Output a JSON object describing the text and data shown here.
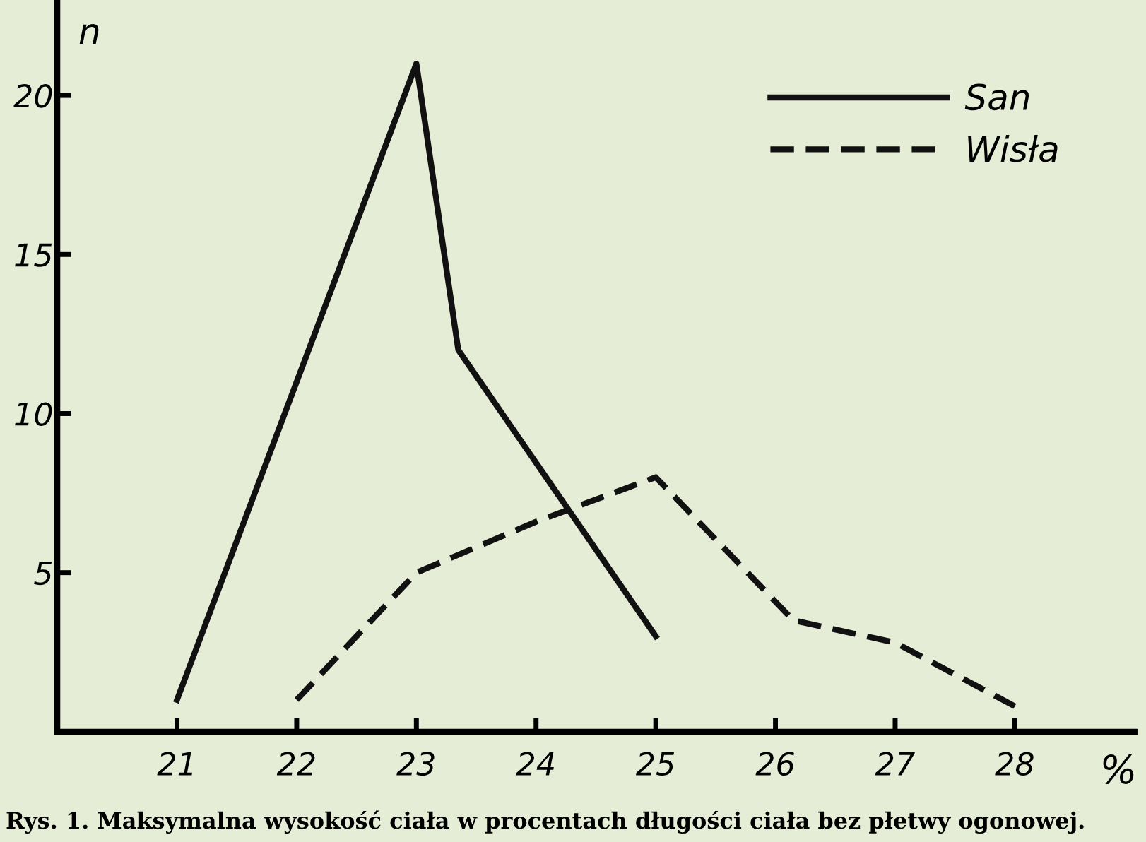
{
  "chart_data": {
    "type": "line",
    "xlabel": "%",
    "ylabel": "n",
    "annotations": [
      "Rys. 1. Maksymalna wysokość ciała w procentach długości ciała bez płetwy ogonowej."
    ],
    "series": [
      {
        "name": "San",
        "color": "#111111",
        "line_style": "solid",
        "x": [
          21,
          23,
          23.35,
          25
        ],
        "values": [
          1,
          21,
          12,
          3
        ]
      },
      {
        "name": "Wisła",
        "color": "#111111",
        "line_style": "dashed",
        "x": [
          22,
          23,
          24,
          25,
          26.15,
          27,
          28
        ],
        "values": [
          1,
          5,
          6.6,
          8,
          3.5,
          2.8,
          0.8
        ]
      }
    ],
    "xlim": [
      20,
      29
    ],
    "ylim": [
      0,
      23
    ],
    "xticks": [
      21,
      22,
      23,
      24,
      25,
      26,
      27,
      28
    ],
    "yticks": [
      5,
      10,
      15,
      20
    ],
    "grid": false,
    "legend": "top right",
    "marker": "none"
  }
}
